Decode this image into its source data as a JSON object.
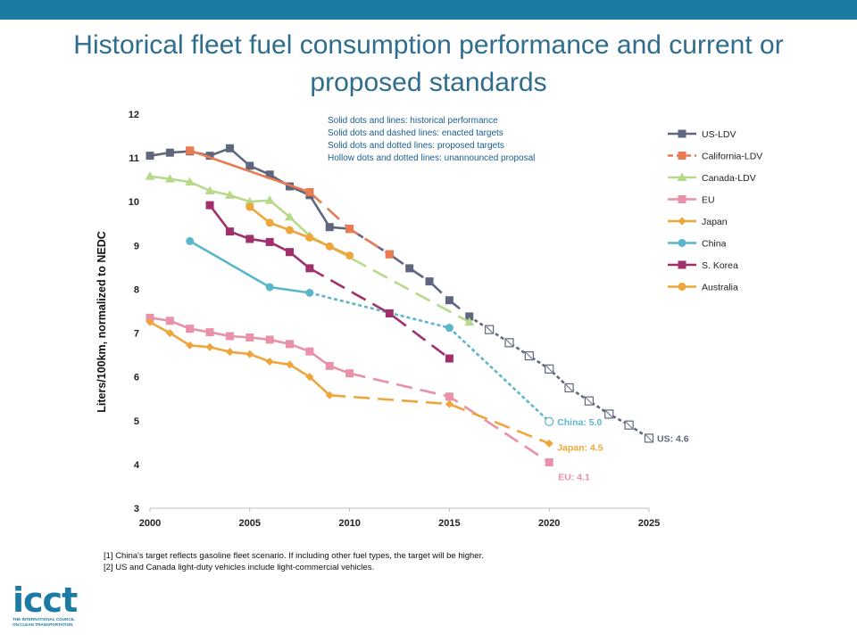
{
  "header": {
    "title_line1": "Historical fleet fuel consumption performance and current or",
    "title_line2": "proposed standards"
  },
  "chart_data": {
    "type": "line",
    "title": "",
    "xlabel": "",
    "ylabel": "Liters/100km, normalized to NEDC",
    "xlim": [
      2000,
      2025
    ],
    "ylim": [
      3,
      12
    ],
    "xticks": [
      2000,
      2005,
      2010,
      2015,
      2020,
      2025
    ],
    "yticks": [
      3,
      4,
      5,
      6,
      7,
      8,
      9,
      10,
      11,
      12
    ],
    "notes": [
      "Solid dots and lines: historical performance",
      "Solid dots and dashed lines: enacted targets",
      "Solid dots and dotted lines: proposed targets",
      "Hollow dots and dotted lines: unannounced proposal"
    ],
    "legend_position": "right",
    "series": [
      {
        "name": "US-LDV",
        "color": "#5e677d",
        "marker": "square",
        "historical": [
          [
            2000,
            11.05
          ],
          [
            2001,
            11.12
          ],
          [
            2002,
            11.15
          ],
          [
            2003,
            11.05
          ],
          [
            2004,
            11.22
          ],
          [
            2005,
            10.82
          ],
          [
            2006,
            10.62
          ],
          [
            2007,
            10.35
          ],
          [
            2008,
            10.15
          ],
          [
            2009,
            9.42
          ],
          [
            2010,
            9.38
          ]
        ],
        "enacted": [
          [
            2010,
            9.38
          ],
          [
            2012,
            8.8
          ],
          [
            2013,
            8.48
          ],
          [
            2014,
            8.18
          ],
          [
            2015,
            7.75
          ],
          [
            2016,
            7.38
          ]
        ],
        "unannounced": [
          [
            2016,
            7.38
          ],
          [
            2017,
            7.08
          ],
          [
            2018,
            6.78
          ],
          [
            2019,
            6.48
          ],
          [
            2020,
            6.18
          ],
          [
            2021,
            5.75
          ],
          [
            2022,
            5.45
          ],
          [
            2023,
            5.15
          ],
          [
            2024,
            4.9
          ],
          [
            2025,
            4.6
          ]
        ],
        "end_label": "US: 4.6"
      },
      {
        "name": "California-LDV",
        "color": "#e97a52",
        "marker": "square",
        "historical": [
          [
            2002,
            11.17
          ],
          [
            2008,
            10.22
          ]
        ],
        "enacted": [
          [
            2008,
            10.22
          ],
          [
            2010,
            9.38
          ],
          [
            2012,
            8.8
          ]
        ],
        "open_points": [
          [
            2012,
            8.8
          ]
        ]
      },
      {
        "name": "Canada-LDV",
        "color": "#b7d98a",
        "marker": "triangle",
        "historical": [
          [
            2000,
            10.58
          ],
          [
            2001,
            10.52
          ],
          [
            2002,
            10.45
          ],
          [
            2003,
            10.25
          ],
          [
            2004,
            10.15
          ],
          [
            2005,
            10.0
          ],
          [
            2006,
            10.03
          ],
          [
            2007,
            9.65
          ],
          [
            2008,
            9.22
          ]
        ],
        "enacted": [
          [
            2008,
            9.22
          ],
          [
            2016,
            7.25
          ]
        ]
      },
      {
        "name": "EU",
        "color": "#e891a8",
        "marker": "square",
        "historical": [
          [
            2000,
            7.35
          ],
          [
            2001,
            7.28
          ],
          [
            2002,
            7.1
          ],
          [
            2003,
            7.02
          ],
          [
            2004,
            6.93
          ],
          [
            2005,
            6.9
          ],
          [
            2006,
            6.85
          ],
          [
            2007,
            6.75
          ],
          [
            2008,
            6.58
          ],
          [
            2009,
            6.25
          ],
          [
            2010,
            6.08
          ]
        ],
        "enacted": [
          [
            2010,
            6.08
          ],
          [
            2015,
            5.55
          ],
          [
            2020,
            4.05
          ]
        ],
        "end_label": "EU: 4.1"
      },
      {
        "name": "Japan",
        "color": "#f0a53a",
        "marker": "diamond",
        "historical": [
          [
            2000,
            7.25
          ],
          [
            2001,
            7.0
          ],
          [
            2002,
            6.72
          ],
          [
            2003,
            6.68
          ],
          [
            2004,
            6.57
          ],
          [
            2005,
            6.52
          ],
          [
            2006,
            6.35
          ],
          [
            2007,
            6.28
          ],
          [
            2008,
            6.0
          ],
          [
            2009,
            5.58
          ]
        ],
        "enacted": [
          [
            2009,
            5.58
          ],
          [
            2015,
            5.38
          ],
          [
            2020,
            4.48
          ]
        ],
        "end_label": "Japan: 4.5"
      },
      {
        "name": "China",
        "color": "#5bb6c9",
        "marker": "circle",
        "historical": [
          [
            2002,
            9.1
          ],
          [
            2006,
            8.05
          ],
          [
            2008,
            7.92
          ]
        ],
        "proposed": [
          [
            2008,
            7.92
          ],
          [
            2015,
            7.12
          ],
          [
            2020,
            4.98
          ]
        ],
        "open_points": [
          [
            2020,
            4.98
          ]
        ],
        "end_label": "China: 5.0"
      },
      {
        "name": "S. Korea",
        "color": "#a0306b",
        "marker": "square",
        "historical": [
          [
            2003,
            9.92
          ],
          [
            2004,
            9.32
          ],
          [
            2005,
            9.15
          ],
          [
            2006,
            9.08
          ],
          [
            2007,
            8.85
          ],
          [
            2008,
            8.48
          ]
        ],
        "enacted": [
          [
            2008,
            8.48
          ],
          [
            2012,
            7.45
          ],
          [
            2015,
            6.42
          ]
        ]
      },
      {
        "name": "Australia",
        "color": "#f0a53a",
        "marker": "circle",
        "historical": [
          [
            2005,
            9.88
          ],
          [
            2006,
            9.52
          ],
          [
            2007,
            9.35
          ],
          [
            2008,
            9.18
          ],
          [
            2009,
            8.98
          ],
          [
            2010,
            8.77
          ]
        ]
      }
    ]
  },
  "footnotes": [
    "[1] China's target reflects gasoline fleet scenario. If including other fuel types, the target will be higher.",
    "[2] US and Canada light-duty vehicles include light-commercial vehicles."
  ],
  "logo": {
    "word": "icct",
    "subtitle_line1": "THE INTERNATIONAL COUNCIL",
    "subtitle_line2": "ON CLEAN TRANSPORTATION"
  }
}
